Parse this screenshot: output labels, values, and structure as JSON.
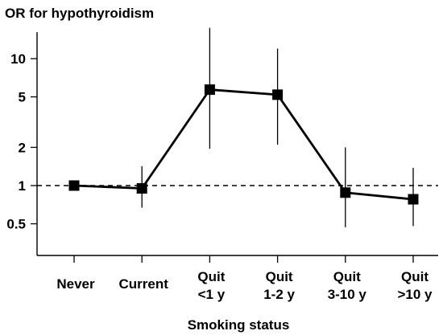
{
  "chart_data": {
    "type": "line",
    "title": "OR for hypothyroidism",
    "xlabel": "Smoking status",
    "ylabel": "",
    "y_scale": "log",
    "ylim": [
      0.4,
      22
    ],
    "y_ticks": [
      0.5,
      1,
      2,
      5,
      10
    ],
    "y_tick_labels": [
      "0.5",
      "1",
      "2",
      "5",
      "10"
    ],
    "reference_line": {
      "y": 1,
      "style": "dashed"
    },
    "categories": [
      [
        "Never"
      ],
      [
        "Current"
      ],
      [
        "Quit",
        "<1 y"
      ],
      [
        "Quit",
        "1-2 y"
      ],
      [
        "Quit",
        "3-10 y"
      ],
      [
        "Quit",
        ">10 y"
      ]
    ],
    "series": [
      {
        "values": [
          1.0,
          0.95,
          5.7,
          5.2,
          0.88,
          0.78
        ],
        "ci_low": [
          0.93,
          0.67,
          1.95,
          2.1,
          0.47,
          0.48
        ],
        "ci_high": [
          1.07,
          1.42,
          17.5,
          12.0,
          2.0,
          1.38
        ]
      }
    ],
    "grid": false,
    "legend": "none",
    "colors": {
      "line": "#000000",
      "marker": "#000000",
      "axis": "#000000"
    }
  }
}
